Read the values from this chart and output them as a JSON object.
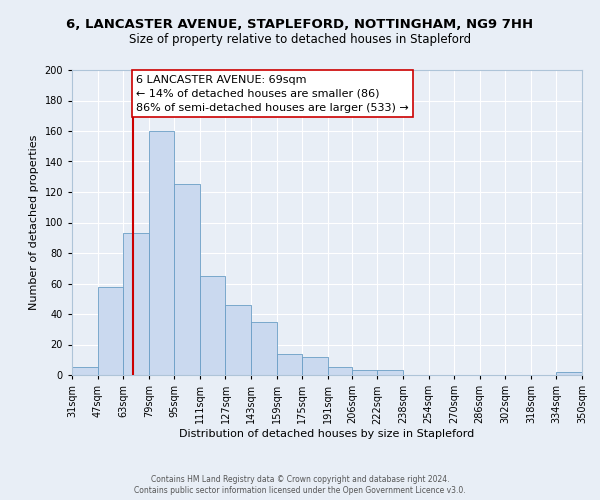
{
  "title_line1": "6, LANCASTER AVENUE, STAPLEFORD, NOTTINGHAM, NG9 7HH",
  "title_line2": "Size of property relative to detached houses in Stapleford",
  "xlabel": "Distribution of detached houses by size in Stapleford",
  "ylabel": "Number of detached properties",
  "bar_edges": [
    31,
    47,
    63,
    79,
    95,
    111,
    127,
    143,
    159,
    175,
    191,
    206,
    222,
    238,
    254,
    270,
    286,
    302,
    318,
    334,
    350
  ],
  "bar_heights": [
    5,
    58,
    93,
    160,
    125,
    65,
    46,
    35,
    14,
    12,
    5,
    3,
    3,
    0,
    0,
    0,
    0,
    0,
    0,
    2
  ],
  "bar_color": "#cad9ef",
  "bar_edge_color": "#6a9ec5",
  "property_line_x": 69,
  "property_line_color": "#cc0000",
  "annotation_title": "6 LANCASTER AVENUE: 69sqm",
  "annotation_line1": "← 14% of detached houses are smaller (86)",
  "annotation_line2": "86% of semi-detached houses are larger (533) →",
  "annotation_box_color": "#ffffff",
  "annotation_box_edge_color": "#cc0000",
  "ylim": [
    0,
    200
  ],
  "yticks": [
    0,
    20,
    40,
    60,
    80,
    100,
    120,
    140,
    160,
    180,
    200
  ],
  "xtick_labels": [
    "31sqm",
    "47sqm",
    "63sqm",
    "79sqm",
    "95sqm",
    "111sqm",
    "127sqm",
    "143sqm",
    "159sqm",
    "175sqm",
    "191sqm",
    "206sqm",
    "222sqm",
    "238sqm",
    "254sqm",
    "270sqm",
    "286sqm",
    "302sqm",
    "318sqm",
    "334sqm",
    "350sqm"
  ],
  "footer_line1": "Contains HM Land Registry data © Crown copyright and database right 2024.",
  "footer_line2": "Contains public sector information licensed under the Open Government Licence v3.0.",
  "background_color": "#e8eef6",
  "plot_bg_color": "#e8eef6",
  "grid_color": "#ffffff",
  "title_fontsize": 9.5,
  "subtitle_fontsize": 8.5,
  "annotation_fontsize": 8,
  "axis_label_fontsize": 8,
  "tick_fontsize": 7,
  "footer_fontsize": 5.5
}
